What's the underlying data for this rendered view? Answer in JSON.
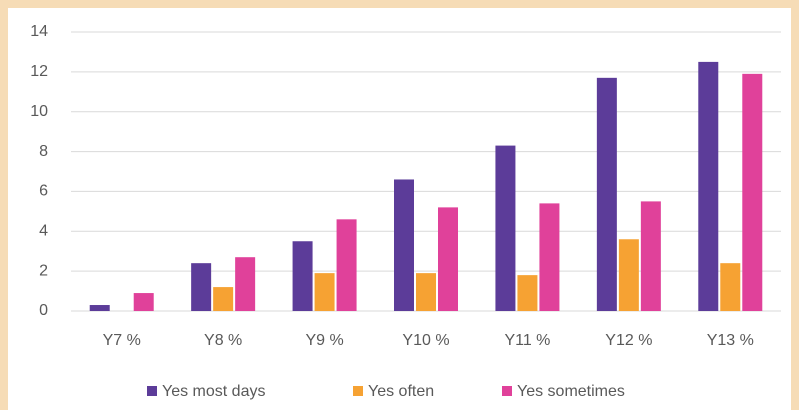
{
  "chart_data": {
    "type": "bar",
    "categories": [
      "Y7 %",
      "Y8 %",
      "Y9 %",
      "Y10 %",
      "Y11 %",
      "Y12 %",
      "Y13 %"
    ],
    "series": [
      {
        "name": "Yes most days",
        "color": "#5c3c99",
        "values": [
          0.3,
          2.4,
          3.5,
          6.6,
          8.3,
          11.7,
          12.5
        ]
      },
      {
        "name": "Yes often",
        "color": "#f6a233",
        "values": [
          0,
          1.2,
          1.9,
          1.9,
          1.8,
          3.6,
          2.4
        ]
      },
      {
        "name": "Yes sometimes",
        "color": "#e0419a",
        "values": [
          0.9,
          2.7,
          4.6,
          5.2,
          5.4,
          5.5,
          11.9
        ]
      }
    ],
    "ylim": [
      0,
      14
    ],
    "yticks": [
      0,
      2,
      4,
      6,
      8,
      10,
      12,
      14
    ],
    "grid": true,
    "legend": "bottom"
  }
}
